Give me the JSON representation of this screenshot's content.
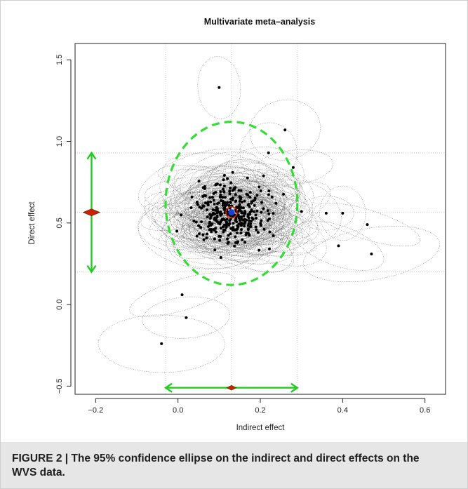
{
  "chart_data": {
    "type": "scatter",
    "title": "Multivariate meta–analysis",
    "xlabel": "Indirect effect",
    "ylabel": "Direct effect",
    "xlim": [
      -0.25,
      0.65
    ],
    "ylim": [
      -0.55,
      1.6
    ],
    "x_ticks": [
      "−0.2",
      "0.0",
      "0.2",
      "0.4",
      "0.6"
    ],
    "y_ticks": [
      "−0.5",
      "0.0",
      "0.5",
      "1.0",
      "1.5"
    ],
    "grid": "dotted reference lines",
    "pooled_estimate": {
      "x": 0.13,
      "y": 0.565
    },
    "confidence_ellipse_95": {
      "x_range": [
        -0.03,
        0.29
      ],
      "y_range": [
        0.12,
        1.12
      ]
    },
    "marginal_interval_x": [
      -0.03,
      0.29
    ],
    "marginal_interval_y": [
      0.2,
      0.93
    ],
    "notable_points": [
      {
        "x": 0.1,
        "y": 1.33
      },
      {
        "x": -0.04,
        "y": -0.24
      },
      {
        "x": 0.02,
        "y": -0.08
      },
      {
        "x": 0.01,
        "y": 0.06
      },
      {
        "x": 0.47,
        "y": 0.31
      },
      {
        "x": 0.46,
        "y": 0.49
      },
      {
        "x": 0.4,
        "y": 0.56
      },
      {
        "x": 0.39,
        "y": 0.36
      },
      {
        "x": 0.36,
        "y": 0.56
      },
      {
        "x": 0.26,
        "y": 1.07
      },
      {
        "x": 0.22,
        "y": 0.93
      },
      {
        "x": 0.28,
        "y": 0.84
      },
      {
        "x": 0.3,
        "y": 0.57
      }
    ],
    "colors": {
      "points": "#000000",
      "ellipses": "#555555",
      "confidence_ellipse": "#33dd33",
      "interval_arrows": "#22cc22",
      "marker_fill": "#cc2200",
      "pooled_marker": "#1a3fd6"
    }
  },
  "caption": "FIGURE 2 | The 95% confidence ellipse on the indirect and direct effects on the WVS data."
}
